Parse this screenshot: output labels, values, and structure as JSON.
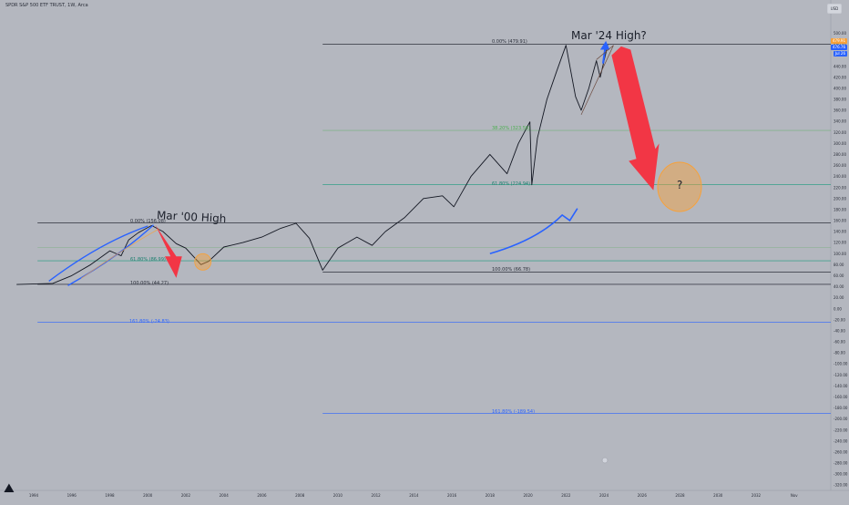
{
  "header": {
    "title": "SPDR S&P 500 ETF TRUST, 1W, Arca",
    "currency": "USD"
  },
  "annotations": {
    "mar00": "Mar '00 High",
    "mar24": "Mar '24 High?",
    "question": "?"
  },
  "fib_left": {
    "l0": "0.00% (156.08)",
    "l61": "61.80% (86.99)",
    "l100": "100.00% (44.27)",
    "l161": "161.80% (-24.83)"
  },
  "fib_right": {
    "l0": "0.00% (479.91)",
    "l38": "38.20% (323.56)",
    "l61": "61.80% (224.94)",
    "l100": "100.00% (66.78)",
    "l161": "161.80% (-189.54)"
  },
  "price_tags": [
    "479.91",
    "476.76",
    "Jul 26"
  ],
  "colors": {
    "bg": "#b4b7bf",
    "price": "#131722",
    "blue": "#2962ff",
    "red": "#f23645",
    "orange": "#f7a13a",
    "green": "#26a69a"
  },
  "chart_data": {
    "type": "line",
    "title": "SPDR S&P 500 ETF TRUST, 1W, Arca",
    "x_ticks": [
      "1994",
      "1996",
      "1998",
      "2000",
      "2002",
      "2004",
      "2006",
      "2008",
      "2010",
      "2012",
      "2014",
      "2016",
      "2018",
      "2020",
      "2022",
      "2024",
      "2026",
      "2028",
      "2030",
      "2032",
      "Nov"
    ],
    "y_ticks": [
      500,
      480,
      460,
      440,
      420,
      400,
      380,
      360,
      340,
      320,
      300,
      280,
      260,
      240,
      220,
      200,
      180,
      160,
      140,
      120,
      100,
      80,
      60,
      40,
      20,
      0,
      -20,
      -40,
      -60,
      -80,
      -100,
      -120,
      -140,
      -160,
      -180,
      -200,
      -220,
      -240,
      -260,
      -280,
      -300,
      -320
    ],
    "ylim": [
      -320,
      510
    ],
    "series": [
      {
        "x": [
          1993.1,
          1995.0,
          1996.0,
          1997.0,
          1998.0,
          1998.6,
          1999.0,
          1999.5,
          2000.2,
          2000.8,
          2001.5,
          2002.0,
          2002.8,
          2003.2,
          2004.0,
          2005.0,
          2006.0,
          2007.0,
          2007.8,
          2008.5,
          2009.2,
          2010.0,
          2011.0,
          2011.8,
          2012.5,
          2013.5,
          2014.5,
          2015.5,
          2016.1,
          2017.0,
          2018.0,
          2018.9,
          2019.5,
          2020.1,
          2020.2,
          2020.5,
          2021.0,
          2021.5,
          2022.0,
          2022.5,
          2022.8,
          2023.2,
          2023.6,
          2023.8,
          2024.2
        ],
        "values": [
          44,
          46,
          60,
          80,
          105,
          96,
          125,
          138,
          151,
          140,
          118,
          110,
          80,
          86,
          112,
          120,
          130,
          146,
          155,
          128,
          70,
          110,
          130,
          115,
          140,
          165,
          200,
          205,
          185,
          240,
          280,
          245,
          300,
          339,
          225,
          310,
          380,
          430,
          478,
          385,
          360,
          400,
          450,
          420,
          479
        ]
      }
    ],
    "fib_left_levels": [
      156.08,
      86.99,
      44.27,
      -24.83
    ],
    "fib_right_levels": [
      479.91,
      323.56,
      224.94,
      66.78,
      -189.54
    ]
  }
}
